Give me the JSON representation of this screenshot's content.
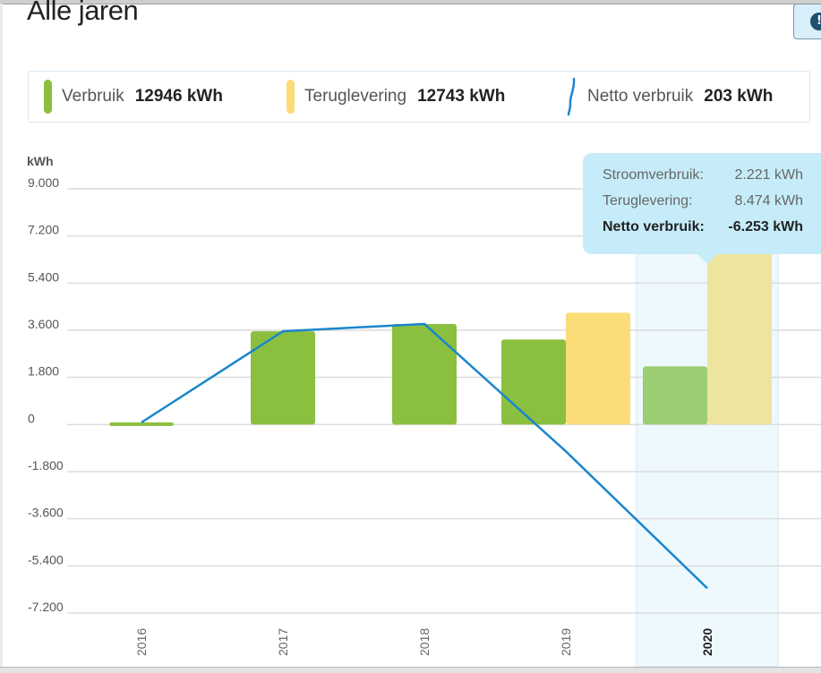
{
  "page": {
    "title": "Alle jaren",
    "info_icon": "exclamation-icon",
    "info_glyph": "!"
  },
  "legend": {
    "items": [
      {
        "label": "Verbruik",
        "value": "12946 kWh",
        "color": "#8bbf3f",
        "icon": "bar-swatch-icon"
      },
      {
        "label": "Teruglevering",
        "value": "12743 kWh",
        "color": "#fcdc78",
        "icon": "bar-swatch-icon"
      },
      {
        "label": "Netto verbruik",
        "value": "203 kWh",
        "color": "#1a86cc",
        "icon": "line-swatch-icon"
      }
    ]
  },
  "tooltip": {
    "rows": [
      {
        "label": "Stroomverbruik:",
        "value": "2.221 kWh"
      },
      {
        "label": "Teruglevering:",
        "value": "8.474 kWh"
      },
      {
        "label": "Netto verbruik:",
        "value": "-6.253 kWh"
      }
    ]
  },
  "chart_data": {
    "type": "bar",
    "ylabel": "kWh",
    "ylim": [
      -7200,
      9000
    ],
    "yticks": [
      9000,
      7200,
      5400,
      3600,
      1800,
      0,
      -1800,
      -3600,
      -5400,
      -7200
    ],
    "ytick_labels": [
      "9.000",
      "7.200",
      "5.400",
      "3.600",
      "1.800",
      "0",
      "-1.800",
      "-3.600",
      "-5.400",
      "-7.200"
    ],
    "categories": [
      "2016",
      "2017",
      "2018",
      "2019",
      "2020"
    ],
    "selected_category": "2020",
    "grid": true,
    "series": [
      {
        "name": "Verbruik",
        "type": "bar",
        "color": "#8bbf3f",
        "selected_color": "#9ccd72",
        "values": [
          80,
          3560,
          3840,
          3245,
          2221
        ]
      },
      {
        "name": "Teruglevering",
        "type": "bar",
        "color": "#fcdc78",
        "selected_color": "#ede49e",
        "values": [
          0,
          0,
          0,
          4269,
          8474
        ]
      },
      {
        "name": "Netto verbruik",
        "type": "line",
        "color": "#1a86cc",
        "values": [
          80,
          3560,
          3840,
          -1024,
          -6253
        ]
      }
    ]
  }
}
